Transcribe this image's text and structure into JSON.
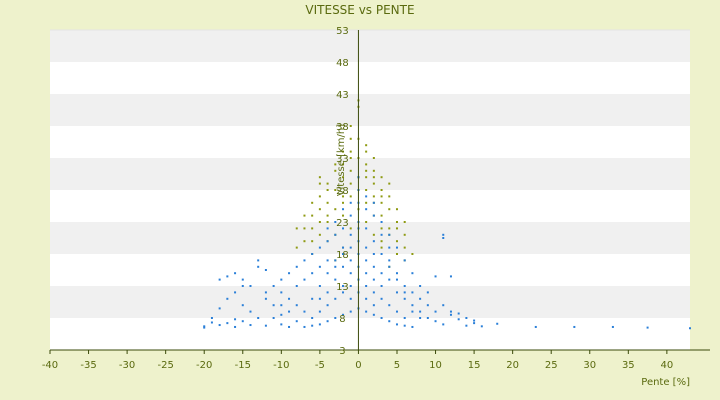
{
  "chart_data": {
    "type": "scatter",
    "title": "VITESSE vs PENTE",
    "xlabel": "Pente [%]",
    "ylabel": "Vitesse [km/h]",
    "xlim": [
      -40,
      43
    ],
    "ylim": [
      3,
      53
    ],
    "x_ticks": [
      "-40",
      "-35",
      "-30",
      "-25",
      "-20",
      "-15",
      "-10",
      "-5",
      "0",
      "5",
      "10",
      "15",
      "20",
      "25",
      "30",
      "35",
      "40"
    ],
    "y_ticks": [
      "3",
      "8",
      "13",
      "18",
      "23",
      "28",
      "33",
      "38",
      "43",
      "48",
      "53"
    ],
    "grid": "horizontal-bands",
    "colors": {
      "background": "#eef2cc",
      "band_light": "#ffffff",
      "band_dark": "#f0f0f0",
      "text": "#5a6a0f",
      "axis": "#3a4a0a",
      "series_blue": "#2a7fd8",
      "series_olive": "#8e9a12"
    },
    "series": [
      {
        "key": "olive",
        "color": "#8e9a12",
        "points": [
          [
            -5,
            30
          ],
          [
            -4,
            29
          ],
          [
            -3,
            31
          ],
          [
            -2,
            32
          ],
          [
            -1,
            33
          ],
          [
            0,
            36
          ],
          [
            0,
            41
          ],
          [
            0,
            42
          ],
          [
            -1,
            38
          ],
          [
            1,
            35
          ],
          [
            1,
            32
          ],
          [
            2,
            31
          ],
          [
            3,
            30
          ],
          [
            4,
            29
          ],
          [
            -5,
            27
          ],
          [
            -6,
            26
          ],
          [
            -7,
            24
          ],
          [
            -8,
            22
          ],
          [
            -7,
            20
          ],
          [
            -6,
            18
          ],
          [
            -5,
            21
          ],
          [
            -4,
            23
          ],
          [
            -3,
            25
          ],
          [
            -2,
            27
          ],
          [
            -1,
            29
          ],
          [
            1,
            28
          ],
          [
            2,
            26
          ],
          [
            3,
            24
          ],
          [
            4,
            22
          ],
          [
            5,
            20
          ],
          [
            5,
            18
          ],
          [
            6,
            17
          ],
          [
            4,
            16
          ],
          [
            3,
            19
          ],
          [
            2,
            21
          ],
          [
            1,
            23
          ],
          [
            0,
            25
          ],
          [
            -1,
            22
          ],
          [
            -2,
            19
          ],
          [
            -3,
            17
          ],
          [
            -4,
            20
          ],
          [
            -5,
            23
          ],
          [
            -6,
            22
          ],
          [
            -3,
            28
          ],
          [
            -2,
            30
          ],
          [
            2,
            29
          ],
          [
            3,
            27
          ],
          [
            4,
            25
          ],
          [
            5,
            23
          ],
          [
            6,
            21
          ],
          [
            -4,
            26
          ],
          [
            -1,
            27
          ],
          [
            1,
            26
          ],
          [
            2,
            24
          ],
          [
            3,
            22
          ],
          [
            -2,
            24
          ],
          [
            -3,
            21
          ],
          [
            0,
            30
          ],
          [
            0,
            28
          ],
          [
            1,
            30
          ],
          [
            -1,
            31
          ],
          [
            2,
            33
          ],
          [
            -2,
            34
          ],
          [
            -4,
            28
          ],
          [
            -5,
            25
          ],
          [
            4,
            27
          ],
          [
            6,
            19
          ],
          [
            5,
            22
          ],
          [
            3,
            20
          ],
          [
            -6,
            20
          ],
          [
            -7,
            22
          ],
          [
            7,
            18
          ],
          [
            -8,
            19
          ],
          [
            -3,
            32
          ],
          [
            1,
            31
          ],
          [
            -1,
            34
          ],
          [
            3,
            28
          ],
          [
            -5,
            29
          ],
          [
            2,
            27
          ],
          [
            -6,
            24
          ],
          [
            4,
            21
          ],
          [
            5,
            25
          ],
          [
            6,
            23
          ],
          [
            -2,
            26
          ],
          [
            -4,
            24
          ],
          [
            0,
            33
          ],
          [
            1,
            34
          ],
          [
            -1,
            36
          ],
          [
            2,
            30
          ],
          [
            3,
            26
          ]
        ]
      },
      {
        "key": "blue",
        "color": "#2a7fd8",
        "points": [
          [
            -20,
            6.5
          ],
          [
            -19,
            8
          ],
          [
            -18,
            9.5
          ],
          [
            -19,
            7.3
          ],
          [
            -18,
            14
          ],
          [
            -17,
            14.5
          ],
          [
            -16,
            15
          ],
          [
            -15,
            14
          ],
          [
            -14,
            13
          ],
          [
            -13,
            17
          ],
          [
            -12,
            15.5
          ],
          [
            -13,
            16
          ],
          [
            -12,
            11
          ],
          [
            -14,
            9
          ],
          [
            -15,
            7.5
          ],
          [
            -16,
            6.6
          ],
          [
            -17,
            7.2
          ],
          [
            -11,
            13
          ],
          [
            -10,
            12
          ],
          [
            -9,
            11
          ],
          [
            -8,
            10
          ],
          [
            -11,
            8
          ],
          [
            -10,
            7
          ],
          [
            -9,
            6.6
          ],
          [
            -8,
            7.5
          ],
          [
            -7,
            9
          ],
          [
            -6,
            11
          ],
          [
            -5,
            13
          ],
          [
            -4,
            15
          ],
          [
            -3,
            17
          ],
          [
            -2,
            19
          ],
          [
            -1,
            21
          ],
          [
            0,
            23
          ],
          [
            1,
            22
          ],
          [
            2,
            20
          ],
          [
            3,
            18
          ],
          [
            4,
            16
          ],
          [
            5,
            14
          ],
          [
            6,
            12
          ],
          [
            7,
            10
          ],
          [
            8,
            9
          ],
          [
            9,
            8
          ],
          [
            10,
            7.5
          ],
          [
            11,
            7
          ],
          [
            12,
            8.5
          ],
          [
            13,
            7.8
          ],
          [
            14,
            6.8
          ],
          [
            15,
            7.2
          ],
          [
            16,
            6.7
          ],
          [
            18,
            7.1
          ],
          [
            10,
            14.5
          ],
          [
            11,
            21
          ],
          [
            11,
            20.5
          ],
          [
            12,
            14.5
          ],
          [
            -10,
            14
          ],
          [
            -9,
            15
          ],
          [
            -8,
            16
          ],
          [
            -7,
            17
          ],
          [
            -6,
            18
          ],
          [
            -5,
            19
          ],
          [
            -4,
            20
          ],
          [
            -3,
            21
          ],
          [
            -2,
            22
          ],
          [
            -1,
            24
          ],
          [
            0,
            26
          ],
          [
            1,
            25
          ],
          [
            2,
            24
          ],
          [
            3,
            23
          ],
          [
            4,
            21
          ],
          [
            5,
            19
          ],
          [
            6,
            17
          ],
          [
            7,
            15
          ],
          [
            8,
            13
          ],
          [
            9,
            12
          ],
          [
            -6,
            8
          ],
          [
            -5,
            9
          ],
          [
            -4,
            10
          ],
          [
            -3,
            11
          ],
          [
            -2,
            12
          ],
          [
            -1,
            13
          ],
          [
            0,
            14
          ],
          [
            1,
            13
          ],
          [
            2,
            12
          ],
          [
            3,
            11
          ],
          [
            4,
            10
          ],
          [
            5,
            9
          ],
          [
            6,
            8
          ],
          [
            -7,
            6.6
          ],
          [
            -6,
            6.8
          ],
          [
            -5,
            7
          ],
          [
            -4,
            7.5
          ],
          [
            -3,
            8
          ],
          [
            -2,
            8.5
          ],
          [
            -1,
            9
          ],
          [
            0,
            9.5
          ],
          [
            1,
            9
          ],
          [
            2,
            8.5
          ],
          [
            3,
            8
          ],
          [
            4,
            7.5
          ],
          [
            5,
            7
          ],
          [
            6,
            6.8
          ],
          [
            7,
            6.6
          ],
          [
            -2,
            16
          ],
          [
            -1,
            17
          ],
          [
            0,
            18
          ],
          [
            1,
            17
          ],
          [
            2,
            16
          ],
          [
            -3,
            14
          ],
          [
            -2,
            13
          ],
          [
            0,
            16
          ],
          [
            1,
            15
          ],
          [
            2,
            14
          ],
          [
            3,
            13
          ],
          [
            -4,
            12
          ],
          [
            -5,
            11
          ],
          [
            -1,
            11
          ],
          [
            0,
            12
          ],
          [
            1,
            11
          ],
          [
            2,
            10
          ],
          [
            -1,
            15
          ],
          [
            0,
            20
          ],
          [
            0,
            22
          ],
          [
            -1,
            19
          ],
          [
            1,
            19
          ],
          [
            2,
            18
          ],
          [
            -2,
            18
          ],
          [
            -3,
            16
          ],
          [
            3,
            15
          ],
          [
            4,
            14
          ],
          [
            -4,
            17
          ],
          [
            -5,
            16
          ],
          [
            -6,
            15
          ],
          [
            -7,
            14
          ],
          [
            -8,
            13
          ],
          [
            5,
            12
          ],
          [
            6,
            11
          ],
          [
            7,
            9
          ],
          [
            8,
            8
          ],
          [
            -9,
            9
          ],
          [
            -10,
            8.5
          ],
          [
            23,
            6.6
          ],
          [
            28,
            6.6
          ],
          [
            33,
            6.6
          ],
          [
            37.5,
            6.5
          ],
          [
            43,
            6.4
          ],
          [
            -20,
            6.7
          ],
          [
            -18,
            6.9
          ],
          [
            -16,
            7.8
          ],
          [
            -14,
            6.9
          ],
          [
            -12,
            6.8
          ],
          [
            -11,
            10
          ],
          [
            -13,
            8
          ],
          [
            -15,
            10
          ],
          [
            -17,
            11
          ],
          [
            -16,
            12
          ],
          [
            -15,
            13
          ],
          [
            -12,
            12
          ],
          [
            -10,
            10
          ],
          [
            9,
            10
          ],
          [
            10,
            9
          ],
          [
            11,
            10
          ],
          [
            12,
            9
          ],
          [
            13,
            8.7
          ],
          [
            14,
            8
          ],
          [
            15,
            7.6
          ],
          [
            8,
            11
          ],
          [
            7,
            12
          ],
          [
            6,
            13
          ],
          [
            5,
            15
          ],
          [
            4,
            17
          ],
          [
            0,
            28
          ],
          [
            -1,
            26
          ],
          [
            1,
            27
          ],
          [
            -2,
            25
          ],
          [
            2,
            26
          ],
          [
            -3,
            23
          ],
          [
            3,
            21
          ],
          [
            -4,
            22
          ],
          [
            4,
            19
          ],
          [
            0,
            30
          ]
        ]
      }
    ]
  }
}
